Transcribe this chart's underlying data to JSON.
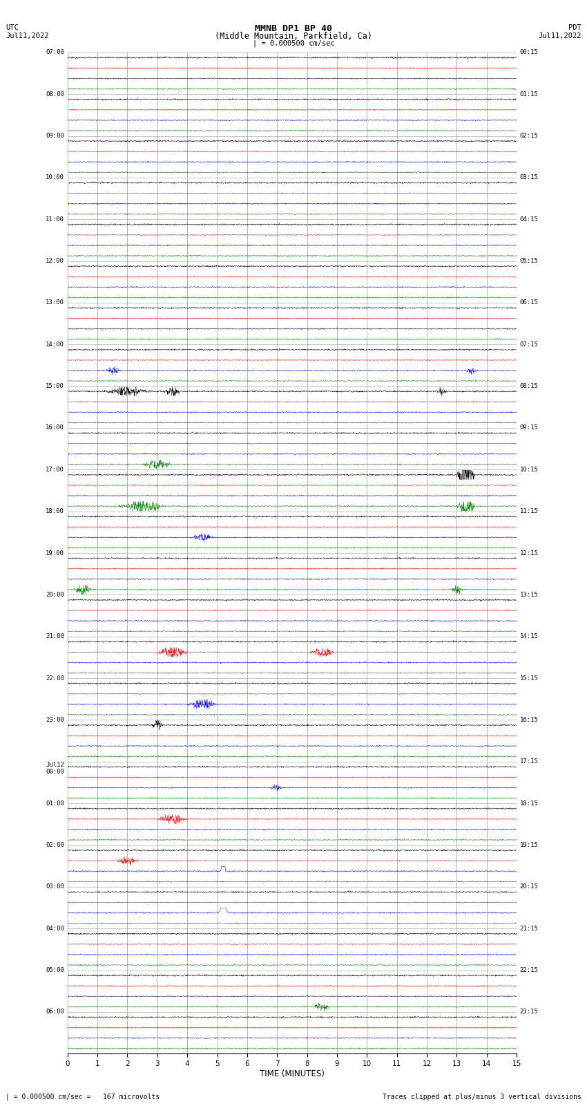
{
  "title_line1": "MMNB DP1 BP 40",
  "title_line2": "(Middle Mountain, Parkfield, Ca)",
  "scale_bar_text": "| = 0.000500 cm/sec",
  "xlabel": "TIME (MINUTES)",
  "footer_left": "| = 0.000500 cm/sec =   167 microvolts",
  "footer_right": "Traces clipped at plus/minus 3 vertical divisions",
  "colors": [
    "black",
    "red",
    "blue",
    "green"
  ],
  "utc_labels": [
    "07:00",
    "08:00",
    "09:00",
    "10:00",
    "11:00",
    "12:00",
    "13:00",
    "14:00",
    "15:00",
    "16:00",
    "17:00",
    "18:00",
    "19:00",
    "20:00",
    "21:00",
    "22:00",
    "23:00",
    "Jul12\n00:00",
    "01:00",
    "02:00",
    "03:00",
    "04:00",
    "05:00",
    "06:00"
  ],
  "pdt_labels": [
    "00:15",
    "01:15",
    "02:15",
    "03:15",
    "04:15",
    "05:15",
    "06:15",
    "07:15",
    "08:15",
    "09:15",
    "10:15",
    "11:15",
    "12:15",
    "13:15",
    "14:15",
    "15:15",
    "16:15",
    "17:15",
    "18:15",
    "19:15",
    "20:15",
    "21:15",
    "22:15",
    "23:15"
  ],
  "n_rows": 24,
  "traces_per_row": 4,
  "minutes": 15,
  "background_color": "white",
  "grid_color": "#999999",
  "xmin": 0,
  "xmax": 15,
  "xticks": [
    0,
    1,
    2,
    3,
    4,
    5,
    6,
    7,
    8,
    9,
    10,
    11,
    12,
    13,
    14,
    15
  ],
  "fig_width": 8.5,
  "fig_height": 16.13,
  "dpi": 100
}
